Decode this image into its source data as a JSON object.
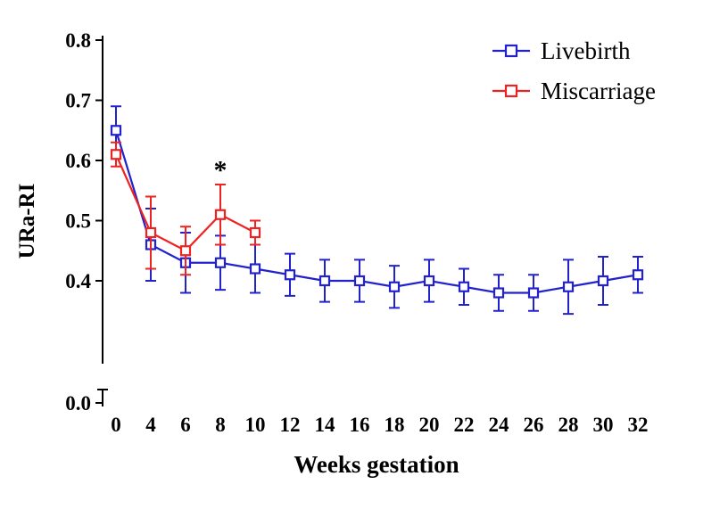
{
  "chart_data": {
    "type": "line",
    "title": "",
    "xlabel": "Weeks gestation",
    "ylabel": "URa-RI",
    "x_categories": [
      0,
      4,
      6,
      8,
      10,
      12,
      14,
      16,
      18,
      20,
      22,
      24,
      26,
      28,
      30,
      32
    ],
    "y_ticks": [
      0.8,
      0.7,
      0.6,
      0.5,
      0.4,
      0.0
    ],
    "y_axis_break": {
      "between": [
        0.0,
        0.4
      ]
    },
    "ylim_upper_segment": [
      0.4,
      0.8
    ],
    "grid": false,
    "legend_position": "top-right",
    "marker": "open-square",
    "error_bars": true,
    "series": [
      {
        "name": "Livebirth",
        "color": "#2222CC",
        "x": [
          0,
          4,
          6,
          8,
          10,
          12,
          14,
          16,
          18,
          20,
          22,
          24,
          26,
          28,
          30,
          32
        ],
        "y": [
          0.65,
          0.46,
          0.43,
          0.43,
          0.42,
          0.41,
          0.4,
          0.4,
          0.39,
          0.4,
          0.39,
          0.38,
          0.38,
          0.39,
          0.4,
          0.41
        ],
        "err": [
          0.04,
          0.06,
          0.05,
          0.045,
          0.04,
          0.035,
          0.035,
          0.035,
          0.035,
          0.035,
          0.03,
          0.03,
          0.03,
          0.045,
          0.04,
          0.03
        ]
      },
      {
        "name": "Miscarriage",
        "color": "#EE2222",
        "x": [
          0,
          4,
          6,
          8,
          10
        ],
        "y": [
          0.61,
          0.48,
          0.45,
          0.51,
          0.48
        ],
        "err": [
          0.02,
          0.06,
          0.04,
          0.05,
          0.02
        ]
      }
    ],
    "annotations": [
      {
        "text": "*",
        "x": 8,
        "y": 0.57
      }
    ]
  }
}
